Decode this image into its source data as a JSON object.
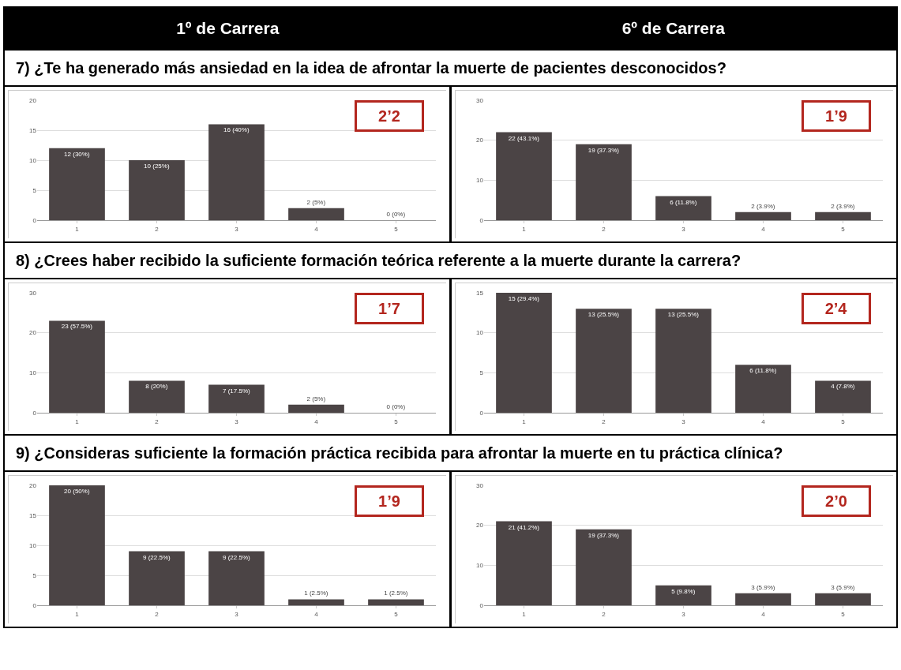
{
  "chart_data": [
    {
      "type": "bar",
      "subtitle": "1º de Carrera",
      "title": "7) ¿Te ha generado más ansiedad en la idea de afrontar la muerte de pacientes desconocidos?",
      "categories": [
        "1",
        "2",
        "3",
        "4",
        "5"
      ],
      "values": [
        12,
        10,
        16,
        2,
        0
      ],
      "value_labels": [
        "12 (30%)",
        "10 (25%)",
        "16 (40%)",
        "2 (5%)",
        "0 (0%)"
      ],
      "color": "#4b4445",
      "ylim": [
        0,
        20
      ],
      "yticks": [
        0,
        5,
        10,
        15,
        20
      ],
      "grid": "y",
      "annotations": [
        "2’2"
      ]
    },
    {
      "type": "bar",
      "subtitle": "6º de Carrera",
      "categories": [
        "1",
        "2",
        "3",
        "4",
        "5"
      ],
      "values": [
        22,
        19,
        6,
        2,
        2
      ],
      "value_labels": [
        "22 (43.1%)",
        "19 (37.3%)",
        "6 (11.8%)",
        "2 (3.9%)",
        "2 (3.9%)"
      ],
      "color": "#4b4445",
      "ylim": [
        0,
        30
      ],
      "yticks": [
        0,
        10,
        20,
        30
      ],
      "grid": "y",
      "annotations": [
        "1’9"
      ]
    },
    {
      "type": "bar",
      "title": "8) ¿Crees haber recibido la suficiente formación teórica referente a la muerte durante la carrera?",
      "categories": [
        "1",
        "2",
        "3",
        "4",
        "5"
      ],
      "values": [
        23,
        8,
        7,
        2,
        0
      ],
      "value_labels": [
        "23 (57.5%)",
        "8 (20%)",
        "7 (17.5%)",
        "2 (5%)",
        "0 (0%)"
      ],
      "color": "#4b4445",
      "ylim": [
        0,
        30
      ],
      "yticks": [
        0,
        10,
        20,
        30
      ],
      "grid": "y",
      "annotations": [
        "1’7"
      ]
    },
    {
      "type": "bar",
      "categories": [
        "1",
        "2",
        "3",
        "4",
        "5"
      ],
      "values": [
        15,
        13,
        13,
        6,
        4
      ],
      "value_labels": [
        "15 (29.4%)",
        "13 (25.5%)",
        "13 (25.5%)",
        "6 (11.8%)",
        "4 (7.8%)"
      ],
      "color": "#4b4445",
      "ylim": [
        0,
        15
      ],
      "yticks": [
        0,
        5,
        10,
        15
      ],
      "grid": "y",
      "annotations": [
        "2’4"
      ]
    },
    {
      "type": "bar",
      "title": "9) ¿Consideras suficiente la formación práctica recibida para afrontar la muerte en tu práctica clínica?",
      "categories": [
        "1",
        "2",
        "3",
        "4",
        "5"
      ],
      "values": [
        20,
        9,
        9,
        1,
        1
      ],
      "value_labels": [
        "20 (50%)",
        "9 (22.5%)",
        "9 (22.5%)",
        "1 (2.5%)",
        "1 (2.5%)"
      ],
      "color": "#4b4445",
      "ylim": [
        0,
        20
      ],
      "yticks": [
        0,
        5,
        10,
        15,
        20
      ],
      "grid": "y",
      "annotations": [
        "1’9"
      ]
    },
    {
      "type": "bar",
      "categories": [
        "1",
        "2",
        "3",
        "4",
        "5"
      ],
      "values": [
        21,
        19,
        5,
        3,
        3
      ],
      "value_labels": [
        "21 (41.2%)",
        "19 (37.3%)",
        "5 (9.8%)",
        "3 (5.9%)",
        "3 (5.9%)"
      ],
      "color": "#4b4445",
      "ylim": [
        0,
        30
      ],
      "yticks": [
        0,
        10,
        20,
        30
      ],
      "grid": "y",
      "annotations": [
        "2’0"
      ]
    }
  ]
}
